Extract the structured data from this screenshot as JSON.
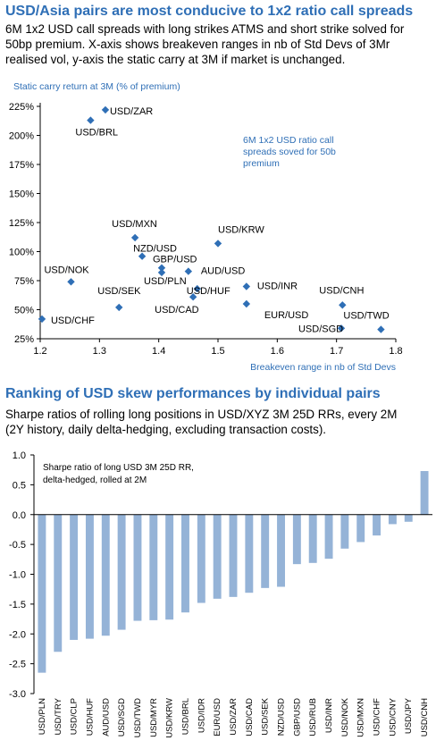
{
  "section1": {
    "title": "USD/Asia pairs are most conducive to 1x2 ratio call spreads",
    "desc_lines": [
      "6M 1x2 USD call spreads with long strikes ATMS and short strike solved for",
      "50bp premium. X-axis shows breakeven ranges in nb of Std Devs of 3Mr",
      "realised vol, y-axis the static carry at 3M if market is unchanged."
    ]
  },
  "section2": {
    "title": "Ranking of USD skew performances by individual pairs",
    "desc_lines": [
      "Sharpe ratios of rolling long positions in USD/XYZ 3M 25D RRs, every 2M",
      "(2Y history, daily delta-hedging, excluding transaction costs)."
    ]
  },
  "chart_data": [
    {
      "type": "scatter",
      "ylabel": "Static carry return at 3M (% of premium)",
      "xlabel": "Breakeven range in nb of Std Devs",
      "annotation": "6M 1x2 USD ratio call spreads soved for 50b premium",
      "annotation_lines": [
        "6M 1x2 USD ratio call",
        "spreads soved for 50b",
        "premium"
      ],
      "xlim": [
        1.2,
        1.8
      ],
      "ylim": [
        25,
        225
      ],
      "xticks": [
        "1.2",
        "1.3",
        "1.4",
        "1.5",
        "1.6",
        "1.7",
        "1.8"
      ],
      "yticks": [
        "25%",
        "50%",
        "75%",
        "100%",
        "125%",
        "150%",
        "175%",
        "200%",
        "225%"
      ],
      "marker_color": "#2f6fb6",
      "points": [
        {
          "label": "USD/ZAR",
          "x": 1.31,
          "y": 222
        },
        {
          "label": "USD/BRL",
          "x": 1.285,
          "y": 213
        },
        {
          "label": "USD/MXN",
          "x": 1.36,
          "y": 112
        },
        {
          "label": "USD/KRW",
          "x": 1.5,
          "y": 107
        },
        {
          "label": "NZD/USD",
          "x": 1.372,
          "y": 96
        },
        {
          "label": "GBP/USD",
          "x": 1.405,
          "y": 86
        },
        {
          "label": "USD/PLN",
          "x": 1.405,
          "y": 82
        },
        {
          "label": "AUD/USD",
          "x": 1.45,
          "y": 83
        },
        {
          "label": "USD/NOK",
          "x": 1.252,
          "y": 74
        },
        {
          "label": "USD/HUF",
          "x": 1.465,
          "y": 68
        },
        {
          "label": "USD/INR",
          "x": 1.548,
          "y": 70
        },
        {
          "label": "USD/SEK",
          "x": 1.333,
          "y": 52
        },
        {
          "label": "USD/CAD",
          "x": 1.458,
          "y": 61
        },
        {
          "label": "EUR/USD",
          "x": 1.548,
          "y": 55
        },
        {
          "label": "USD/CNH",
          "x": 1.71,
          "y": 54
        },
        {
          "label": "USD/CHF",
          "x": 1.203,
          "y": 42
        },
        {
          "label": "USD/SGD",
          "x": 1.708,
          "y": 34
        },
        {
          "label": "USD/TWD",
          "x": 1.775,
          "y": 33
        }
      ]
    },
    {
      "type": "bar",
      "note_lines": [
        "Sharpe ratio of long USD 3M 25D RR,",
        "delta-hedged, rolled at 2M"
      ],
      "ylim": [
        -3.0,
        1.0
      ],
      "yticks": [
        "1.0",
        "0.5",
        "0.0",
        "-0.5",
        "-1.0",
        "-1.5",
        "-2.0",
        "-2.5",
        "-3.0"
      ],
      "bar_color": "#95b3d7",
      "categories": [
        "USD/PLN",
        "USD/TRY",
        "USD/CLP",
        "USD/HUF",
        "AUD/USD",
        "USD/SGD",
        "USD/TWD",
        "USD/MYR",
        "USD/KRW",
        "USD/BRL",
        "USD/IDR",
        "EUR/USD",
        "USD/ZAR",
        "USD/CAD",
        "USD/SEK",
        "NZD/USD",
        "GBP/USD",
        "USD/RUB",
        "USD/INR",
        "USD/NOK",
        "USD/MXN",
        "USD/CHF",
        "USD/CNY",
        "USD/JPY",
        "USD/CNH"
      ],
      "values": [
        -2.65,
        -2.3,
        -2.1,
        -2.08,
        -2.03,
        -1.93,
        -1.78,
        -1.77,
        -1.76,
        -1.64,
        -1.48,
        -1.41,
        -1.38,
        -1.31,
        -1.23,
        -1.21,
        -0.83,
        -0.81,
        -0.74,
        -0.57,
        -0.46,
        -0.35,
        -0.16,
        -0.12,
        0.73
      ]
    }
  ]
}
